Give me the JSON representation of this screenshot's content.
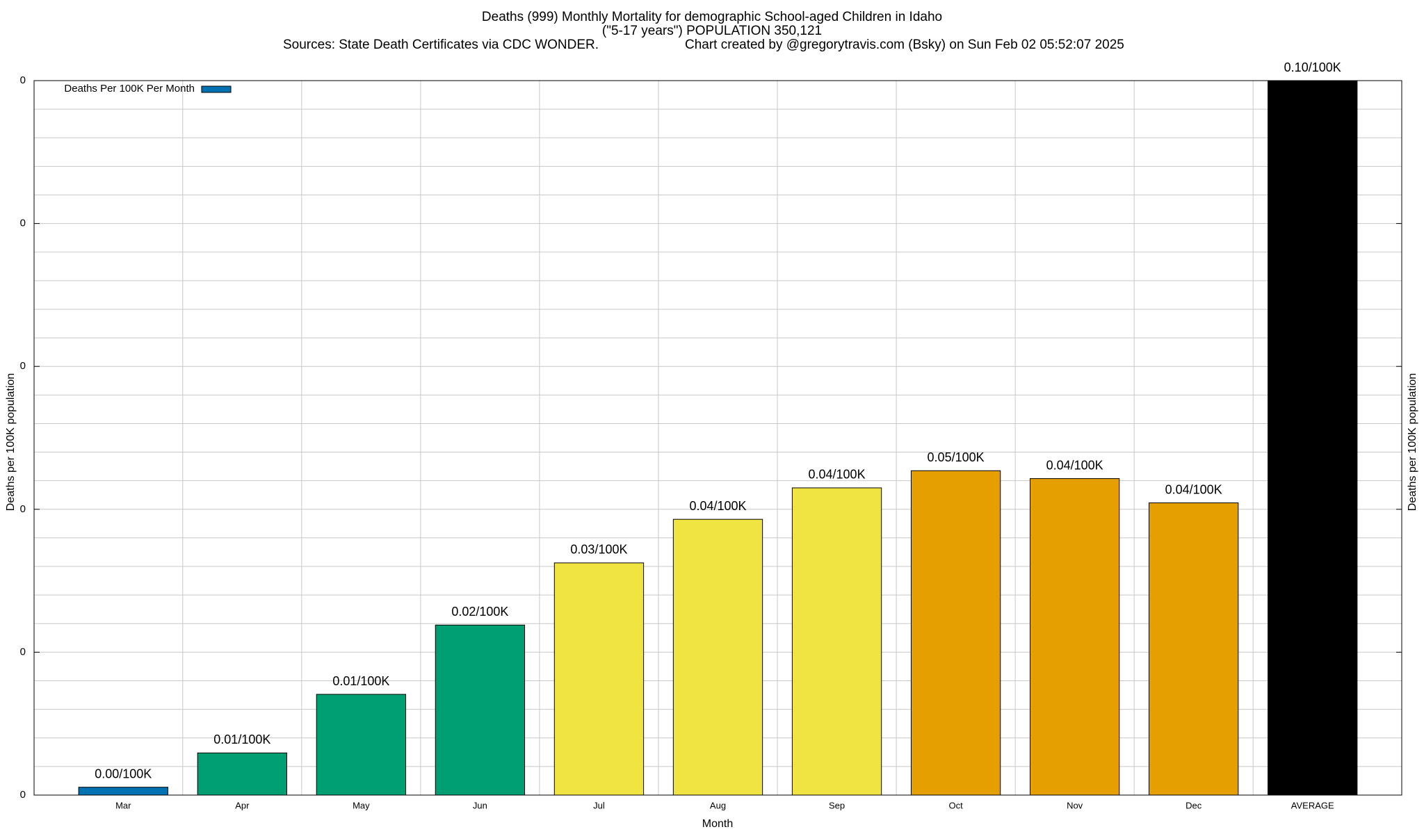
{
  "chart_data": {
    "type": "bar",
    "title": "Deaths (999) Monthly Mortality for demographic School-aged Children in Idaho",
    "subtitle": "(\"5-17 years\") POPULATION 350,121",
    "source": "Sources: State Death Certificates via CDC WONDER.",
    "credit": "Chart created by @gregorytravis.com (Bsky) on Sun Feb 02 05:52:07 2025",
    "xlabel": "Month",
    "ylabel": "Deaths per 100K population",
    "categories": [
      "Mar",
      "Apr",
      "May",
      "Jun",
      "Jul",
      "Aug",
      "Sep",
      "Oct",
      "Nov",
      "Dec",
      "AVERAGE"
    ],
    "series": [
      {
        "name": "Deaths Per 100K Per Month",
        "color": "#0072b2",
        "values": [
          0.0011,
          0.0059,
          0.0141,
          0.0238,
          0.0325,
          0.0386,
          0.043,
          0.0454,
          0.0443,
          0.0409,
          0.1
        ],
        "value_labels": [
          "0.00/100K",
          "0.01/100K",
          "0.01/100K",
          "0.02/100K",
          "0.03/100K",
          "0.04/100K",
          "0.04/100K",
          "0.05/100K",
          "0.04/100K",
          "0.04/100K",
          "0.10/100K"
        ],
        "colors": [
          "#0072b2",
          "#009e73",
          "#009e73",
          "#009e73",
          "#f0e442",
          "#f0e442",
          "#f0e442",
          "#e69f00",
          "#e69f00",
          "#e69f00",
          "#000000"
        ]
      }
    ],
    "ylim": [
      0,
      0.1
    ],
    "yticks": [
      0,
      {
        "value": 0.02,
        "label": "0"
      },
      {
        "value": 0.04,
        "label": "0"
      },
      {
        "value": 0.06,
        "label": "0"
      },
      {
        "value": 0.08,
        "label": "0"
      },
      {
        "value": 0.1,
        "label": "0"
      }
    ],
    "yminorticks": [
      0.004,
      0.008,
      0.012,
      0.016,
      0.024,
      0.028,
      0.032,
      0.036,
      0.044,
      0.048,
      0.052,
      0.056,
      0.064,
      0.068,
      0.072,
      0.076,
      0.084,
      0.088,
      0.092,
      0.096
    ],
    "grid": true,
    "legend": "top-left"
  }
}
